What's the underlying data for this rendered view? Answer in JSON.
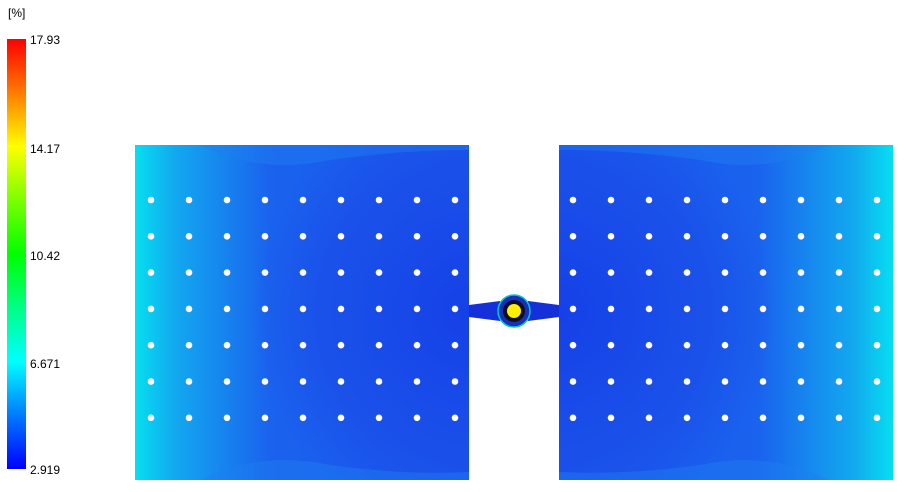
{
  "legend": {
    "unit": "[%]",
    "ticks": [
      "17.93",
      "14.17",
      "10.42",
      "6.671",
      "2.919"
    ],
    "max_color": "#ff0000",
    "min_color": "#0000ff"
  },
  "plot": {
    "panel_edge_color": "#00e6f0",
    "panel_core_color": "#1a5cf0",
    "gate_color": "#ffee00",
    "runner_color": "#1530d8",
    "hole_rows": 7,
    "hole_cols": 9
  }
}
